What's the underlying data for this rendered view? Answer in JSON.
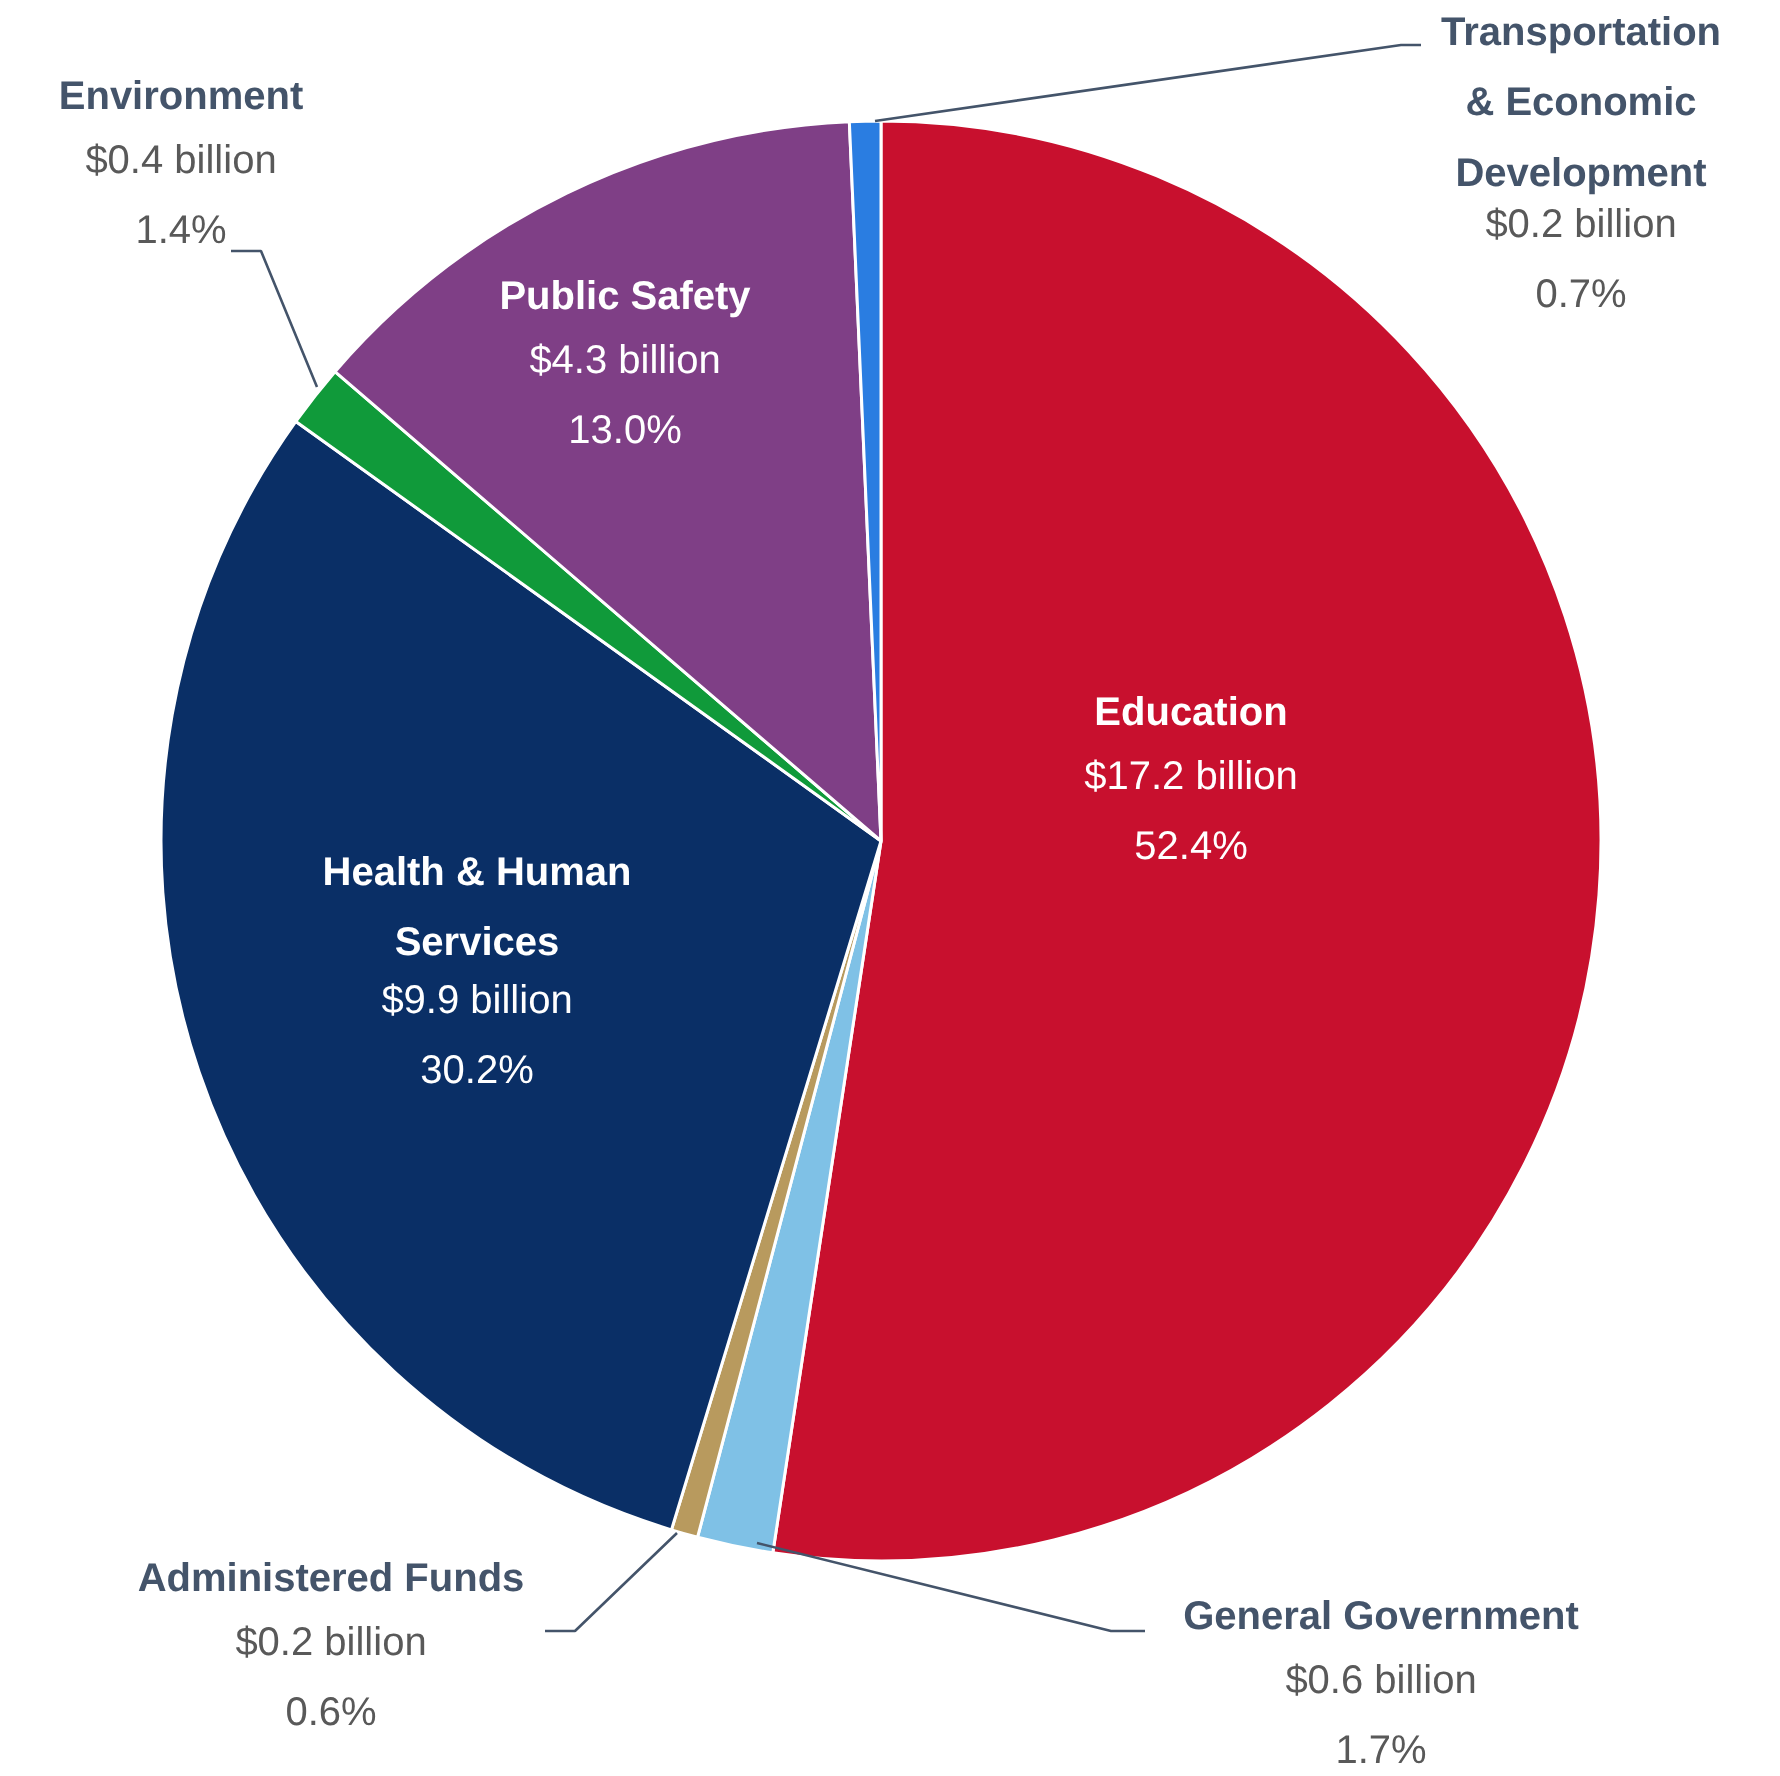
{
  "chart_data": {
    "type": "pie",
    "categories": [
      "Education",
      "General Government",
      "Administered Funds",
      "Health & Human\nServices",
      "Environment",
      "Public Safety",
      "Transportation\n& Economic\nDevelopment"
    ],
    "values": [
      52.4,
      1.7,
      0.6,
      30.2,
      1.4,
      13.0,
      0.7
    ],
    "colors": [
      "#c8102e",
      "#7fc1e6",
      "#b89a5e",
      "#0a2f66",
      "#109a3a",
      "#7f3f86",
      "#2a7de1"
    ],
    "value_labels": [
      "$17.2 billion\n52.4%",
      "$0.6 billion\n1.7%",
      "$0.2 billion\n0.6%",
      "$9.9 billion\n30.2%",
      "$0.4 billion\n1.4%",
      "$4.3 billion\n13.0%",
      "$0.2 billion\n0.7%"
    ]
  }
}
